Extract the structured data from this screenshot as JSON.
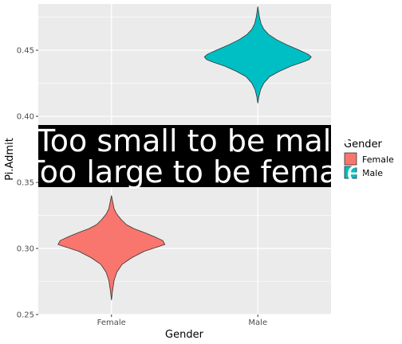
{
  "chart_data": {
    "type": "violin",
    "title": "",
    "xlabel": "Gender",
    "ylabel": "Pi.Admit",
    "categories": [
      "Female",
      "Male"
    ],
    "ylim": [
      0.25,
      0.485
    ],
    "yticks": [
      "0.25",
      "0.30",
      "0.35",
      "0.40",
      "0.45"
    ],
    "ytick_values": [
      0.25,
      0.3,
      0.35,
      0.4,
      0.45
    ],
    "grid": true,
    "legend": {
      "title": "Gender",
      "placement": "right",
      "entries": [
        {
          "label": "Female",
          "color": "#F8766D"
        },
        {
          "label": "Male",
          "color": "#00BFC4"
        }
      ]
    },
    "series": [
      {
        "name": "Female",
        "color": "#F8766D",
        "min": 0.261,
        "max": 0.34,
        "profile": [
          [
            0.261,
            0.0
          ],
          [
            0.268,
            0.02
          ],
          [
            0.276,
            0.05
          ],
          [
            0.282,
            0.1
          ],
          [
            0.288,
            0.2
          ],
          [
            0.293,
            0.38
          ],
          [
            0.298,
            0.62
          ],
          [
            0.301,
            0.85
          ],
          [
            0.303,
            1.0
          ],
          [
            0.306,
            0.96
          ],
          [
            0.309,
            0.8
          ],
          [
            0.312,
            0.62
          ],
          [
            0.315,
            0.42
          ],
          [
            0.318,
            0.28
          ],
          [
            0.322,
            0.18
          ],
          [
            0.326,
            0.1
          ],
          [
            0.33,
            0.05
          ],
          [
            0.334,
            0.03
          ],
          [
            0.337,
            0.015
          ],
          [
            0.34,
            0.0
          ]
        ]
      },
      {
        "name": "Male",
        "color": "#00BFC4",
        "min": 0.41,
        "max": 0.483,
        "profile": [
          [
            0.41,
            0.0
          ],
          [
            0.415,
            0.02
          ],
          [
            0.42,
            0.05
          ],
          [
            0.425,
            0.11
          ],
          [
            0.43,
            0.22
          ],
          [
            0.434,
            0.4
          ],
          [
            0.438,
            0.62
          ],
          [
            0.441,
            0.84
          ],
          [
            0.443,
            0.96
          ],
          [
            0.445,
            1.0
          ],
          [
            0.447,
            0.94
          ],
          [
            0.45,
            0.78
          ],
          [
            0.454,
            0.55
          ],
          [
            0.458,
            0.35
          ],
          [
            0.462,
            0.2
          ],
          [
            0.466,
            0.11
          ],
          [
            0.47,
            0.06
          ],
          [
            0.475,
            0.03
          ],
          [
            0.479,
            0.015
          ],
          [
            0.483,
            0.0
          ]
        ]
      }
    ],
    "annotation": {
      "lines": [
        "Too small to be male",
        "Too large to be female"
      ]
    }
  }
}
